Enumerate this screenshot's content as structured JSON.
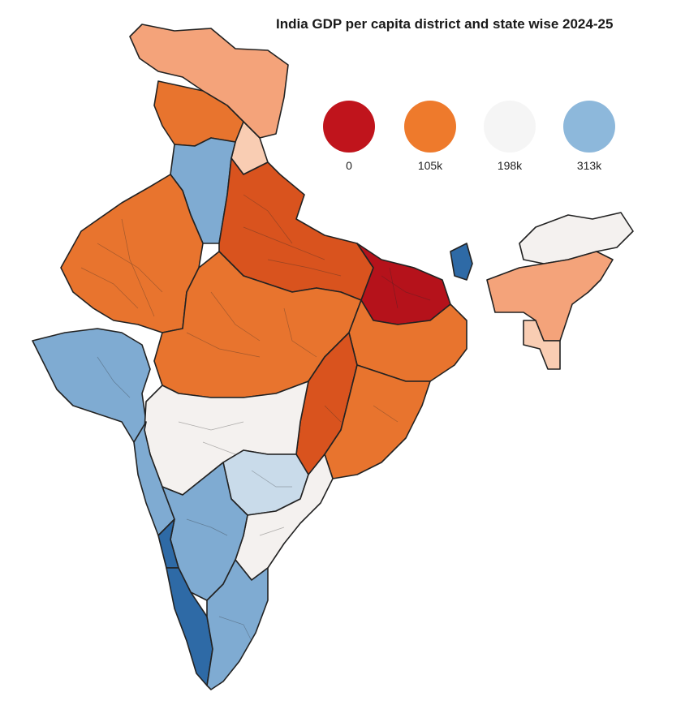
{
  "title": "India GDP per capita district and state wise 2024-25",
  "legend": [
    {
      "label": "0",
      "color": "#c0141c"
    },
    {
      "label": "105k",
      "color": "#ee7a2c"
    },
    {
      "label": "198k",
      "color": "#f5f5f5"
    },
    {
      "label": "313k",
      "color": "#8db8db"
    }
  ],
  "palette": {
    "dark_red": "#b5121b",
    "red_orange": "#d9531e",
    "orange": "#e8742e",
    "light_orange": "#f4a37a",
    "peach": "#f9cdb3",
    "near_white": "#f4f1ef",
    "light_blue": "#c9dbea",
    "mid_blue": "#7fabd2",
    "dark_blue": "#2e6aa6",
    "border": "#222222"
  },
  "regions": [
    {
      "name": "jammu-kashmir-ladakh",
      "color": "light_orange"
    },
    {
      "name": "himachal-punjab",
      "color": "orange"
    },
    {
      "name": "uttarakhand",
      "color": "peach"
    },
    {
      "name": "haryana-delhi",
      "color": "mid_blue"
    },
    {
      "name": "rajasthan",
      "color": "orange"
    },
    {
      "name": "uttar-pradesh",
      "color": "red_orange"
    },
    {
      "name": "bihar",
      "color": "dark_red"
    },
    {
      "name": "sikkim",
      "color": "dark_blue"
    },
    {
      "name": "northeast-arunachal",
      "color": "near_white"
    },
    {
      "name": "assam",
      "color": "light_orange"
    },
    {
      "name": "meghalaya-tripura",
      "color": "peach"
    },
    {
      "name": "gujarat",
      "color": "mid_blue"
    },
    {
      "name": "madhya-pradesh",
      "color": "orange"
    },
    {
      "name": "jharkhand-west-bengal",
      "color": "orange"
    },
    {
      "name": "chhattisgarh",
      "color": "red_orange"
    },
    {
      "name": "odisha",
      "color": "orange"
    },
    {
      "name": "maharashtra",
      "color": "near_white"
    },
    {
      "name": "maharashtra-west",
      "color": "mid_blue"
    },
    {
      "name": "telangana",
      "color": "light_blue"
    },
    {
      "name": "andhra-pradesh",
      "color": "near_white"
    },
    {
      "name": "karnataka",
      "color": "mid_blue"
    },
    {
      "name": "goa-coast",
      "color": "dark_blue"
    },
    {
      "name": "kerala",
      "color": "dark_blue"
    },
    {
      "name": "tamil-nadu",
      "color": "mid_blue"
    }
  ]
}
